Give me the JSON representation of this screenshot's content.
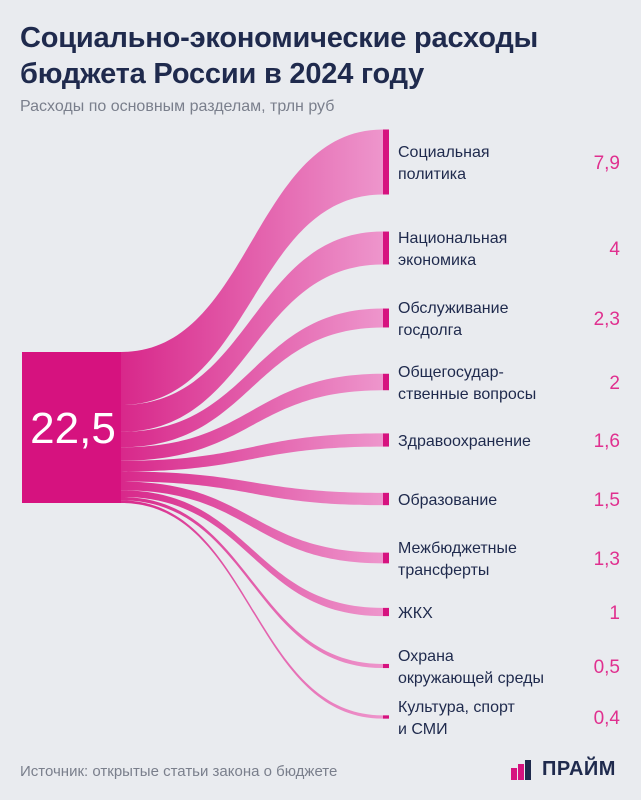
{
  "header": {
    "title": "Социально-экономические расходы бюджета России в 2024 году",
    "subtitle": "Расходы по основным разделам, трлн руб"
  },
  "footer": {
    "source": "Источник: открытые статьи закона о бюджете",
    "logo_text": "ПРАЙМ"
  },
  "colors": {
    "accent": "#e0308f",
    "source_node": "#d6127f",
    "flow": "#e35aae",
    "text_dark": "#1f2a4d",
    "background": "#e9ebef"
  },
  "chart_data": {
    "type": "sankey",
    "total": "22,5",
    "categories": [
      "Социальная политика",
      "Национальная экономика",
      "Обслуживание госдолга",
      "Общегосударственные вопросы",
      "Здравоохранение",
      "Образование",
      "Межбюджетные трансферты",
      "ЖКХ",
      "Охрана окружающей среды",
      "Культура, спорт и СМИ"
    ],
    "category_lines": [
      [
        "Социальная",
        "политика"
      ],
      [
        "Национальная",
        "экономика"
      ],
      [
        "Обслуживание",
        "госдолга"
      ],
      [
        "Общегосудар-",
        "ственные вопросы"
      ],
      [
        "Здравоохранение"
      ],
      [
        "Образование"
      ],
      [
        "Межбюджетные",
        "трансферты"
      ],
      [
        "ЖКХ"
      ],
      [
        "Охрана",
        "окружающей среды"
      ],
      [
        "Культура, спорт",
        "и СМИ"
      ]
    ],
    "values": [
      7.9,
      4,
      2.3,
      2,
      1.6,
      1.5,
      1.3,
      1,
      0.5,
      0.4
    ],
    "value_labels": [
      "7,9",
      "4",
      "2,3",
      "2",
      "1,6",
      "1,5",
      "1,3",
      "1",
      "0,5",
      "0,4"
    ]
  }
}
